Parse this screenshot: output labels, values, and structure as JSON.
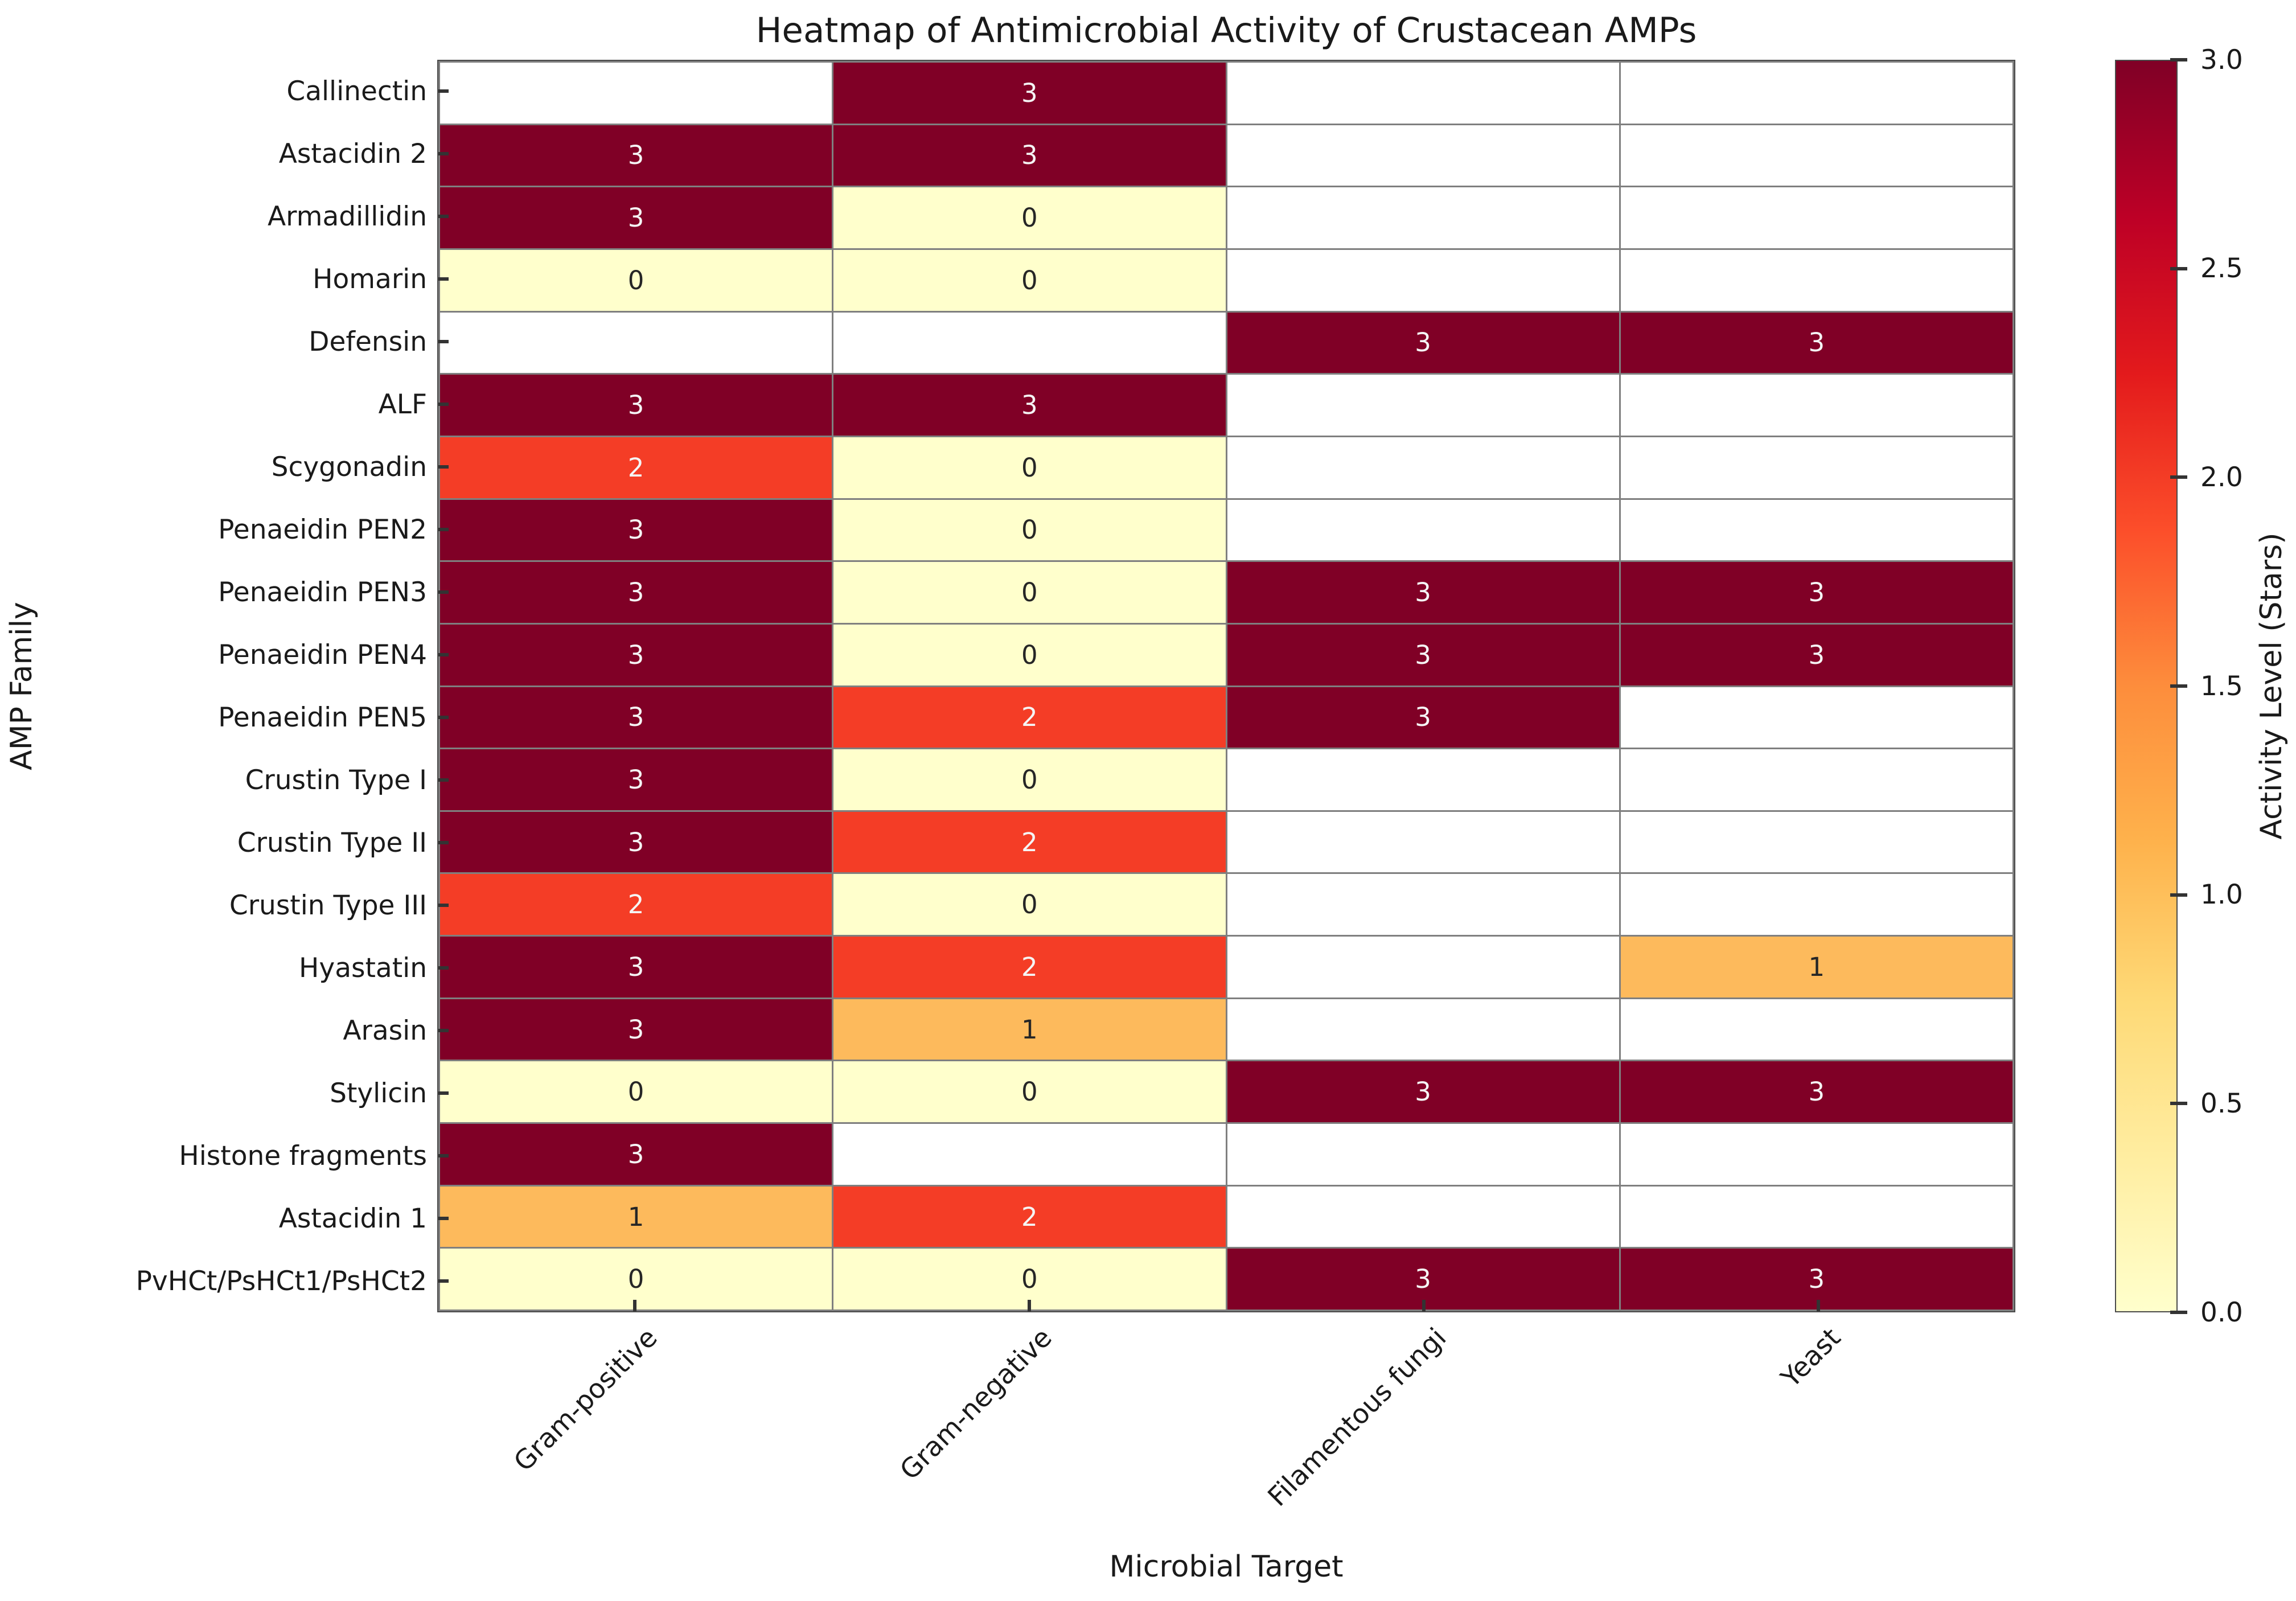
{
  "figure": {
    "background": "#ffffff"
  },
  "chart_data": {
    "type": "heatmap",
    "title": "Heatmap of Antimicrobial Activity of Crustacean AMPs",
    "xlabel": "Microbial Target",
    "ylabel": "AMP Family",
    "columns": [
      "Gram-positive",
      "Gram-negative",
      "Filamentous fungi",
      "Yeast"
    ],
    "rows": [
      "Callinectin",
      "Astacidin 2",
      "Armadillidin",
      "Homarin",
      "Defensin",
      "ALF",
      "Scygonadin",
      "Penaeidin PEN2",
      "Penaeidin PEN3",
      "Penaeidin PEN4",
      "Penaeidin PEN5",
      "Crustin Type I",
      "Crustin Type II",
      "Crustin Type III",
      "Hyastatin",
      "Arasin",
      "Stylicin",
      "Histone fragments",
      "Astacidin 1",
      "PvHCt/PsHCt1/PsHCt2"
    ],
    "values": [
      [
        null,
        3,
        null,
        null
      ],
      [
        3,
        3,
        null,
        null
      ],
      [
        3,
        0,
        null,
        null
      ],
      [
        0,
        0,
        null,
        null
      ],
      [
        null,
        null,
        3,
        3
      ],
      [
        3,
        3,
        null,
        null
      ],
      [
        2,
        0,
        null,
        null
      ],
      [
        3,
        0,
        null,
        null
      ],
      [
        3,
        0,
        3,
        3
      ],
      [
        3,
        0,
        3,
        3
      ],
      [
        3,
        2,
        3,
        null
      ],
      [
        3,
        0,
        null,
        null
      ],
      [
        3,
        2,
        null,
        null
      ],
      [
        2,
        0,
        null,
        null
      ],
      [
        3,
        2,
        null,
        1
      ],
      [
        3,
        1,
        null,
        null
      ],
      [
        0,
        0,
        3,
        3
      ],
      [
        3,
        null,
        null,
        null
      ],
      [
        1,
        2,
        null,
        null
      ],
      [
        0,
        0,
        3,
        3
      ]
    ],
    "annotations_shown": true,
    "xlim_categories": 4,
    "ylim_categories": 20,
    "grid": "on",
    "grid_color": "#7f7f7f",
    "nan_color": "#ffffff",
    "value_colors": {
      "0": "#ffffcc",
      "1": "#fdbа5c",
      "2": "#f43d26",
      "3": "#800026"
    },
    "value_colors_fixed": {
      "0": "#ffffcc",
      "1": "#fdba5c",
      "2": "#f43d26",
      "3": "#800026"
    },
    "value_text_colors": {
      "0": "#262626",
      "1": "#262626",
      "2": "#f5f5f5",
      "3": "#f5f5f5"
    },
    "colorbar": {
      "label": "Activity Level (Stars)",
      "min": 0.0,
      "max": 3.0,
      "position": "right",
      "ticks": [
        "3.0",
        "2.5",
        "2.0",
        "1.5",
        "1.0",
        "0.5",
        "0.0"
      ],
      "colormap": "YlOrRd",
      "gradient_top_to_bottom": [
        "#800026",
        "#bd0026",
        "#e31a1c",
        "#fc4e2a",
        "#fd8d3c",
        "#feb24c",
        "#fed976",
        "#ffeda0",
        "#ffffcc"
      ]
    }
  }
}
